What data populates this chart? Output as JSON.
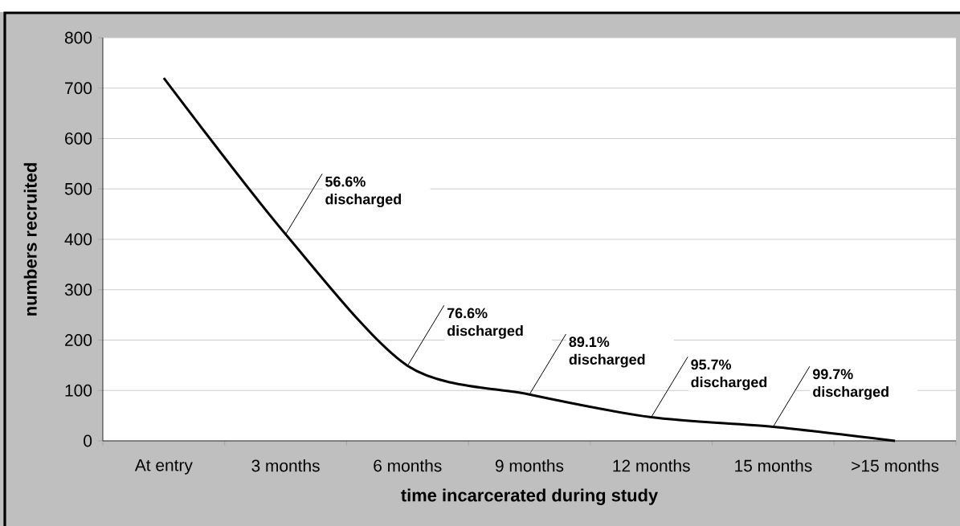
{
  "chart_data": {
    "type": "line",
    "xlabel": "time incarcerated during study",
    "ylabel": "numbers recruited",
    "categories": [
      "At entry",
      "3 months",
      "6 months",
      "9 months",
      "12 months",
      "15 months",
      ">15 months"
    ],
    "values": [
      720,
      410,
      149,
      92,
      47,
      28,
      0
    ],
    "color": "#000000",
    "ylim": [
      0,
      800
    ],
    "yticks": [
      0,
      100,
      200,
      300,
      400,
      500,
      600,
      700,
      800
    ],
    "grid": "y",
    "marker": "none",
    "line_style": "solid",
    "annotations": [
      {
        "text": "56.6% discharged",
        "x": "3 months",
        "y": 410
      },
      {
        "text": "76.6% discharged",
        "x": "6 months",
        "y": 149
      },
      {
        "text": "89.1% discharged",
        "x": "9 months",
        "y": 92
      },
      {
        "text": "95.7% discharged",
        "x": "12 months",
        "y": 47
      },
      {
        "text": "99.7% discharged",
        "x": "15 months",
        "y": 28
      }
    ]
  }
}
